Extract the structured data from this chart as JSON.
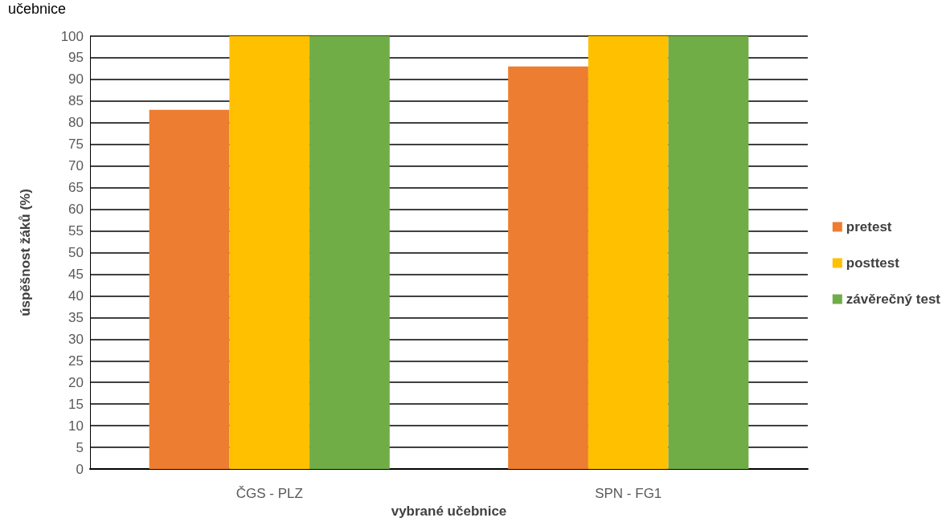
{
  "chart_data": {
    "type": "bar",
    "title": "učebnice",
    "xlabel": "vybrané učebnice",
    "ylabel": "úspěšnost žáků (%)",
    "categories": [
      "ČGS - PLZ",
      "SPN - FG1"
    ],
    "series": [
      {
        "name": "pretest",
        "color": "#ed7d31",
        "values": [
          83,
          93
        ]
      },
      {
        "name": "posttest",
        "color": "#ffc000",
        "values": [
          100,
          100
        ]
      },
      {
        "name": "závěrečný test",
        "color": "#70ad47",
        "values": [
          100,
          100
        ]
      }
    ],
    "ylim": [
      0,
      100
    ],
    "yticks": [
      0,
      5,
      10,
      15,
      20,
      25,
      30,
      35,
      40,
      45,
      50,
      55,
      60,
      65,
      70,
      75,
      80,
      85,
      90,
      95,
      100
    ],
    "grid": "y",
    "legend": "right"
  }
}
